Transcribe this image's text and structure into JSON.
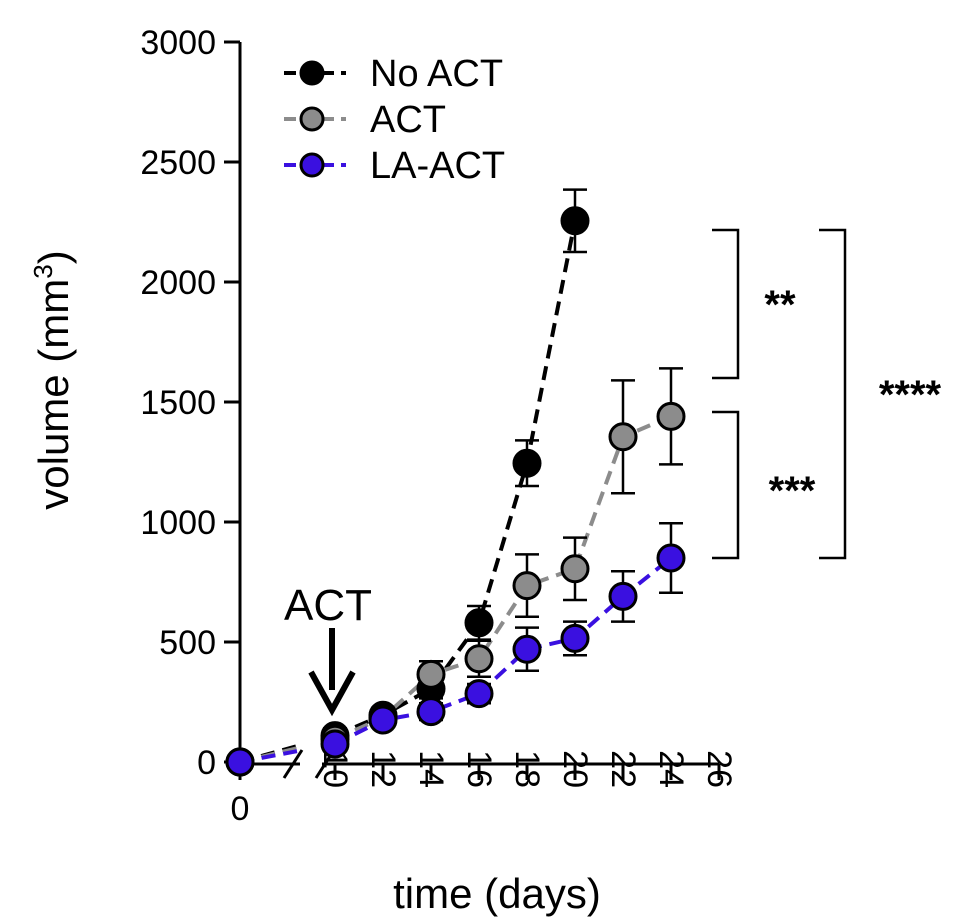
{
  "chart_data": {
    "type": "line",
    "xlabel": "time (days)",
    "ylabel_main": "volume (mm",
    "ylabel_sup": "3",
    "ylabel_close": ")",
    "ylim": [
      0,
      3000
    ],
    "yticks": [
      0,
      500,
      1000,
      1500,
      2000,
      2500,
      3000
    ],
    "xticks": [
      0,
      10,
      12,
      14,
      16,
      18,
      20,
      22,
      24,
      26
    ],
    "x_axis_break": "between 0 and 10",
    "annotation": {
      "text": "ACT",
      "at_day": 10
    },
    "series": [
      {
        "name": "No ACT",
        "color": "#000000",
        "x": [
          0,
          10,
          12,
          14,
          16,
          18,
          20
        ],
        "y": [
          0,
          110,
          195,
          305,
          580,
          1245,
          2255
        ],
        "err": [
          0,
          30,
          30,
          40,
          70,
          95,
          130
        ]
      },
      {
        "name": "ACT",
        "color": "#8c8c8c",
        "x": [
          0,
          10,
          12,
          14,
          16,
          18,
          20,
          22,
          24
        ],
        "y": [
          0,
          95,
          185,
          365,
          430,
          735,
          805,
          1355,
          1440
        ],
        "err": [
          0,
          30,
          30,
          55,
          75,
          130,
          130,
          235,
          200
        ]
      },
      {
        "name": "LA-ACT",
        "color": "#3a10e0",
        "x": [
          0,
          10,
          12,
          14,
          16,
          18,
          20,
          22,
          24
        ],
        "y": [
          0,
          75,
          175,
          210,
          285,
          470,
          515,
          690,
          850
        ],
        "err": [
          0,
          20,
          25,
          35,
          40,
          90,
          70,
          105,
          145
        ]
      }
    ],
    "significance": [
      {
        "label": "**",
        "between": [
          "No ACT",
          "ACT"
        ]
      },
      {
        "label": "***",
        "between": [
          "ACT",
          "LA-ACT"
        ]
      },
      {
        "label": "****",
        "between": [
          "No ACT",
          "LA-ACT"
        ]
      }
    ],
    "legend_position": "top-left"
  }
}
